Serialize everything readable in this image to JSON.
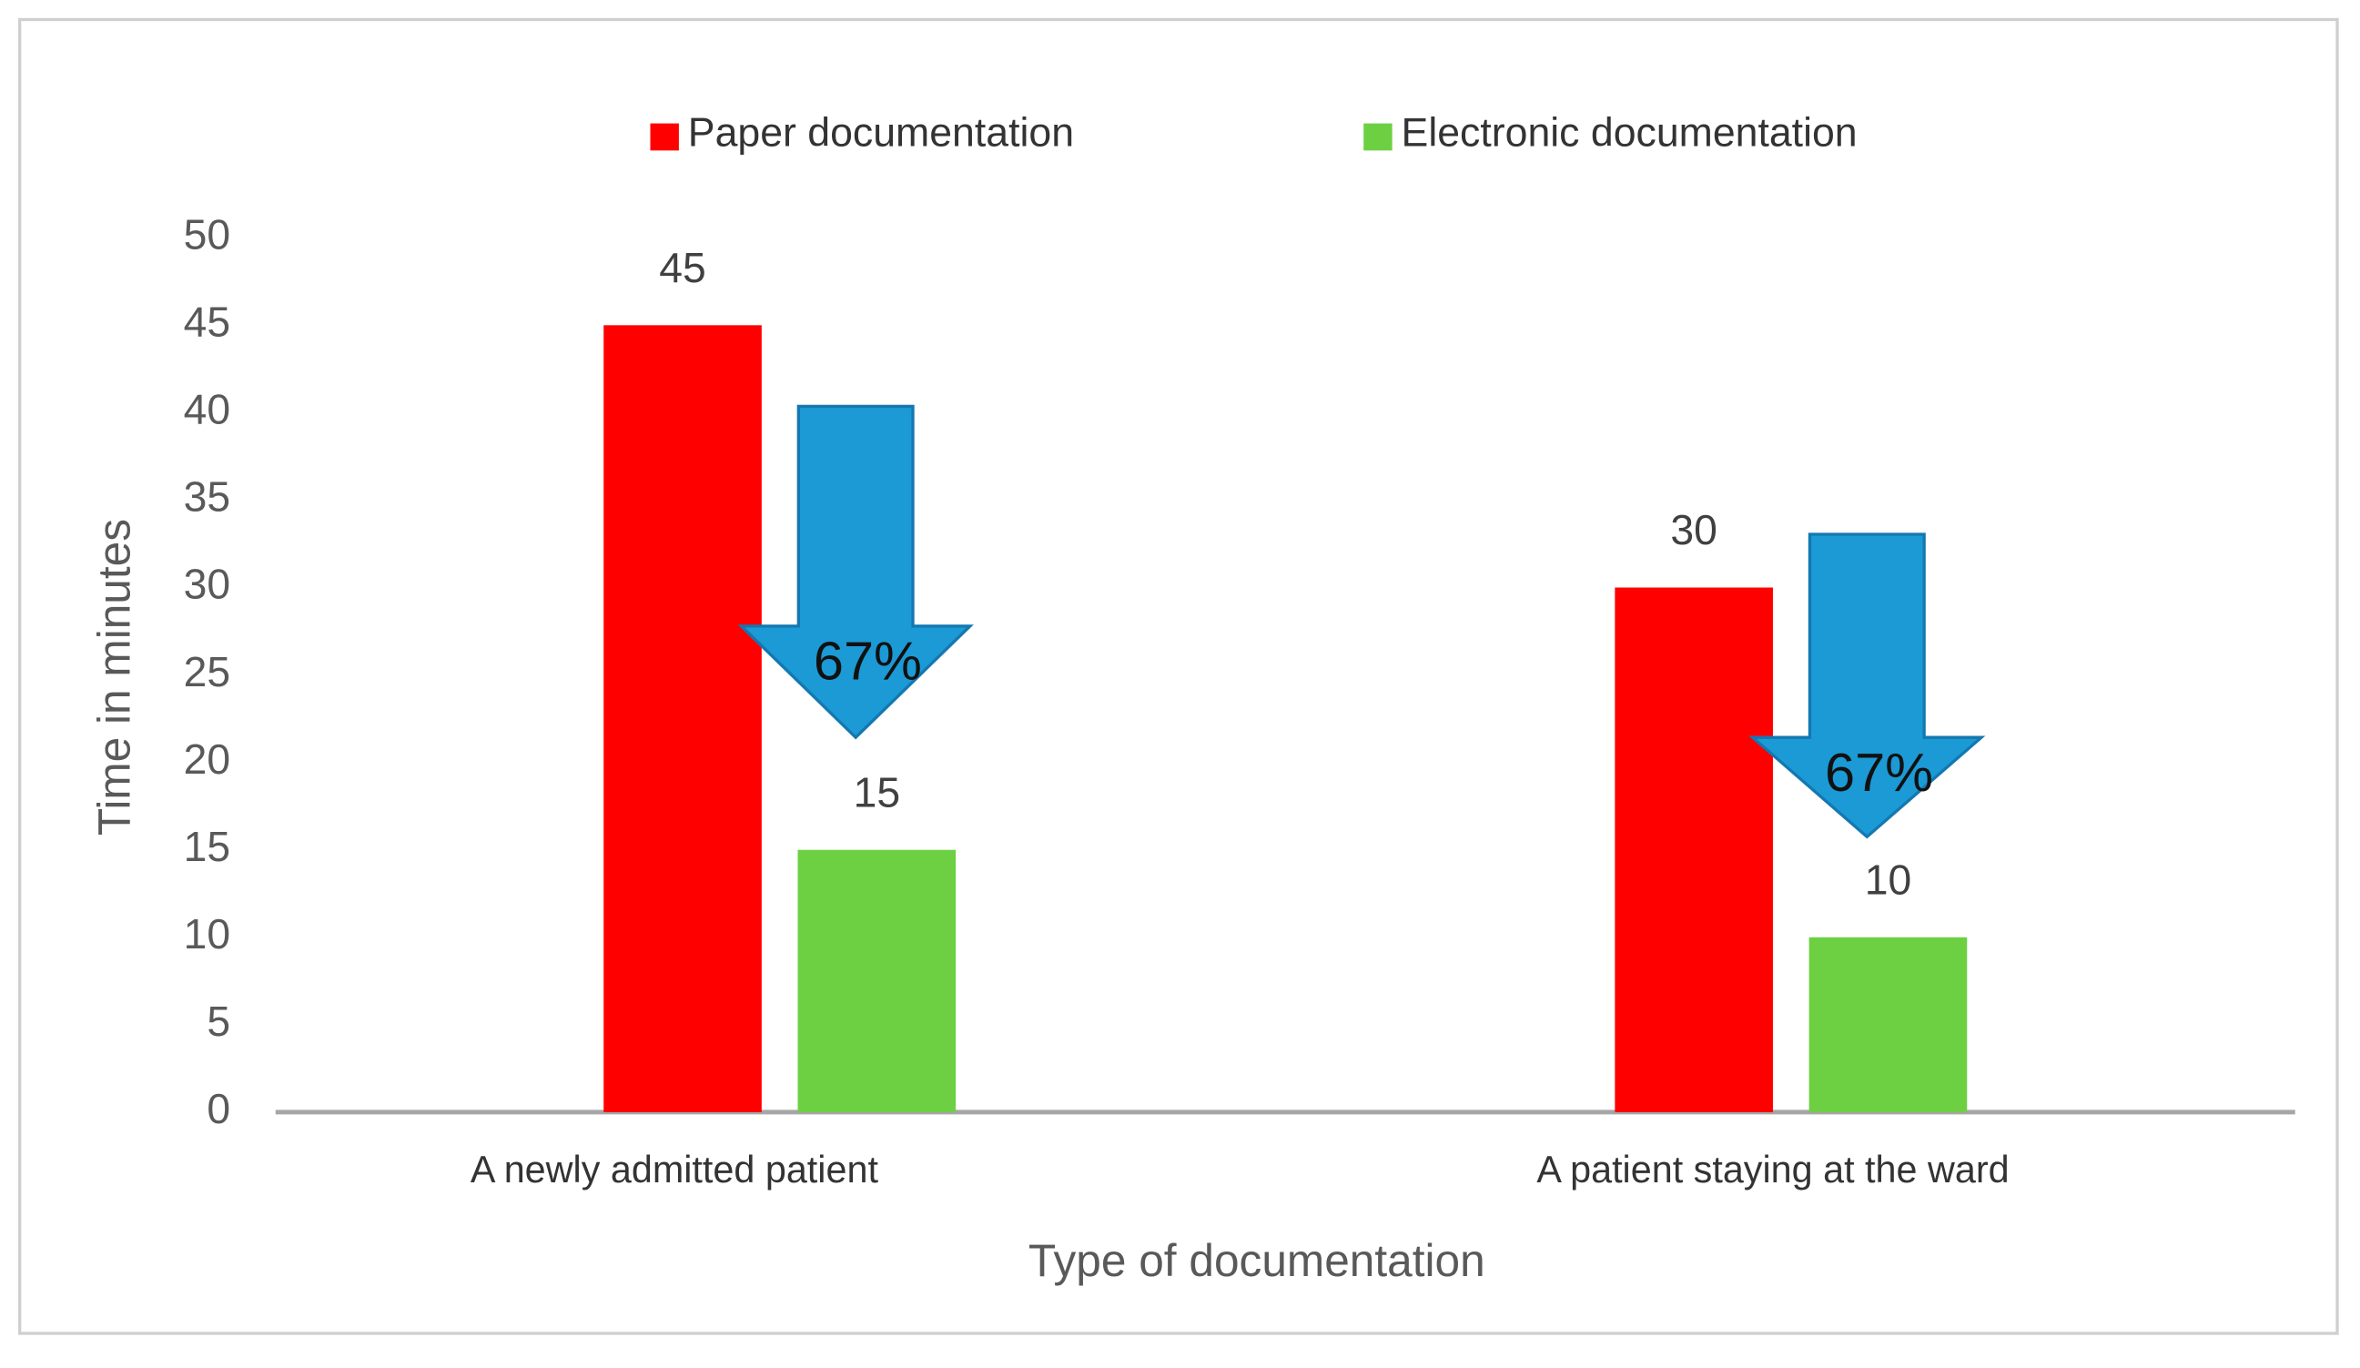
{
  "chart_data": {
    "type": "bar",
    "x_label": "Type of documentation",
    "y_label": "Time in minutes",
    "categories": [
      "A newly admitted patient",
      "A patient staying at the ward"
    ],
    "series": [
      {
        "name": "Paper documentation",
        "color": "#ff0000",
        "values": [
          45,
          30
        ]
      },
      {
        "name": "Electronic documentation",
        "color": "#6dd043",
        "values": [
          15,
          10
        ]
      }
    ],
    "annotations": [
      "67%",
      "67%"
    ],
    "ylim": [
      0,
      50
    ],
    "yticks": [
      0,
      5,
      10,
      15,
      20,
      25,
      30,
      35,
      40,
      45,
      50
    ],
    "grid": false
  }
}
